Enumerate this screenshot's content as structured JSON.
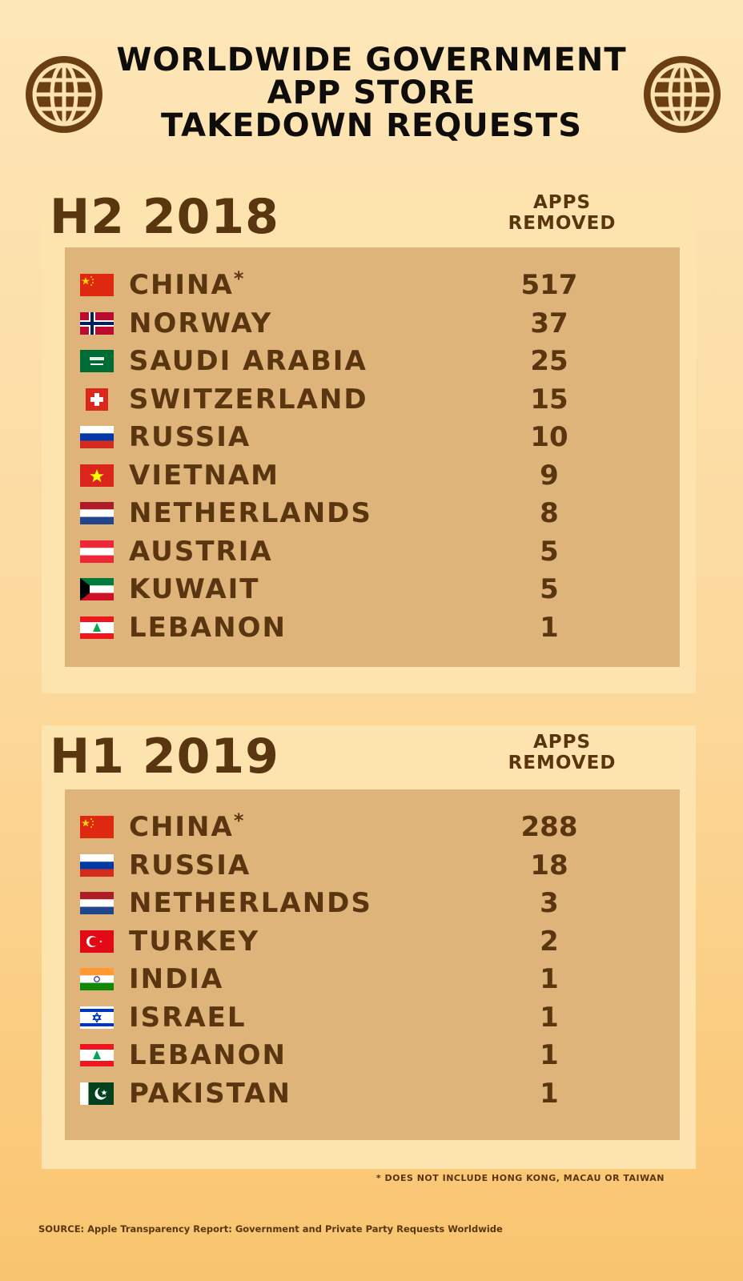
{
  "title_lines": [
    "WORLDWIDE GOVERNMENT",
    "APP STORE",
    "TAKEDOWN REQUESTS"
  ],
  "colors": {
    "background_top": "#fde6b8",
    "background_bottom": "#f9c46f",
    "panel": "#fde3ad",
    "table": "#dfb47a",
    "text_brown": "#5a3610",
    "title": "#0f0d0b"
  },
  "icons": {
    "left": "globe-icon",
    "right": "globe-icon"
  },
  "h2_2018": {
    "period": "H2 2018",
    "column_header_line1": "APPS",
    "column_header_line2": "REMOVED",
    "rows": [
      {
        "country": "CHINA",
        "mark": "*",
        "value": "517",
        "flag": "china"
      },
      {
        "country": "NORWAY",
        "mark": "",
        "value": "37",
        "flag": "norway"
      },
      {
        "country": "SAUDI ARABIA",
        "mark": "",
        "value": "25",
        "flag": "saudi-arabia"
      },
      {
        "country": "SWITZERLAND",
        "mark": "",
        "value": "15",
        "flag": "switzerland"
      },
      {
        "country": "RUSSIA",
        "mark": "",
        "value": "10",
        "flag": "russia"
      },
      {
        "country": "VIETNAM",
        "mark": "",
        "value": "9",
        "flag": "vietnam"
      },
      {
        "country": "NETHERLANDS",
        "mark": "",
        "value": "8",
        "flag": "netherlands"
      },
      {
        "country": "AUSTRIA",
        "mark": "",
        "value": "5",
        "flag": "austria"
      },
      {
        "country": "KUWAIT",
        "mark": "",
        "value": "5",
        "flag": "kuwait"
      },
      {
        "country": "LEBANON",
        "mark": "",
        "value": "1",
        "flag": "lebanon"
      }
    ]
  },
  "h1_2019": {
    "period": "H1 2019",
    "column_header_line1": "APPS",
    "column_header_line2": "REMOVED",
    "rows": [
      {
        "country": "CHINA",
        "mark": "*",
        "value": "288",
        "flag": "china"
      },
      {
        "country": "RUSSIA",
        "mark": "",
        "value": "18",
        "flag": "russia"
      },
      {
        "country": "NETHERLANDS",
        "mark": "",
        "value": "3",
        "flag": "netherlands"
      },
      {
        "country": "TURKEY",
        "mark": "",
        "value": "2",
        "flag": "turkey"
      },
      {
        "country": "INDIA",
        "mark": "",
        "value": "1",
        "flag": "india"
      },
      {
        "country": "ISRAEL",
        "mark": "",
        "value": "1",
        "flag": "israel"
      },
      {
        "country": "LEBANON",
        "mark": "",
        "value": "1",
        "flag": "lebanon"
      },
      {
        "country": "PAKISTAN",
        "mark": "",
        "value": "1",
        "flag": "pakistan"
      }
    ]
  },
  "footnote": "* DOES NOT INCLUDE HONG KONG, MACAU OR TAIWAN",
  "source": "SOURCE: Apple Transparency Report: Government and Private Party Requests Worldwide"
}
